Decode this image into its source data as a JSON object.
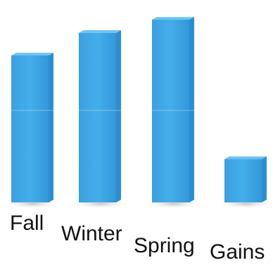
{
  "chart_data": {
    "type": "bar",
    "categories": [
      "Fall",
      "Winter",
      "Spring",
      "Gains"
    ],
    "values": [
      78,
      90,
      97,
      23
    ],
    "title": "",
    "xlabel": "",
    "ylabel": "",
    "ylim": [
      0,
      100
    ],
    "grid": false,
    "legend": "none",
    "colors": {
      "bar_front": "#3aa6e6",
      "bar_side": "#2a8fd2",
      "bar_top": "#6cc3f2",
      "shadow": "#d8d8d8",
      "label": "#111111"
    }
  }
}
